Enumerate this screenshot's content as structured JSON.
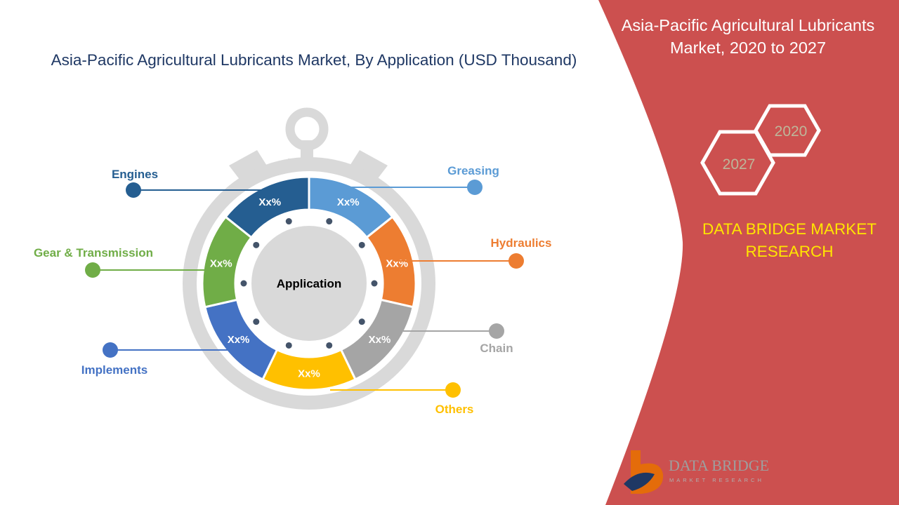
{
  "title": "Asia-Pacific Agricultural Lubricants Market, By Application (USD Thousand)",
  "side_panel": {
    "title_line1": "Asia-Pacific Agricultural Lubricants",
    "title_line2": "Market, 2020 to 2027",
    "year_start": "2020",
    "year_end": "2027",
    "brand_line1": "DATA BRIDGE MARKET",
    "brand_line2": "RESEARCH",
    "background_color": "#CC504F",
    "brand_color": "#FFE600"
  },
  "logo": {
    "line1": "DATA BRIDGE",
    "line2": "MARKET RESEARCH"
  },
  "diagram": {
    "center_label": "Application",
    "segments": [
      {
        "label": "Greasing",
        "value": "Xx%",
        "color": "#5B9BD5"
      },
      {
        "label": "Hydraulics",
        "value": "Xx%",
        "color": "#ED7D31"
      },
      {
        "label": "Chain",
        "value": "Xx%",
        "color": "#A5A5A5"
      },
      {
        "label": "Others",
        "value": "Xx%",
        "color": "#FFC000"
      },
      {
        "label": "Implements",
        "value": "Xx%",
        "color": "#4472C4"
      },
      {
        "label": "Gear & Transmission",
        "value": "Xx%",
        "color": "#70AD47"
      },
      {
        "label": "Engines",
        "value": "Xx%",
        "color": "#255E91"
      }
    ]
  }
}
